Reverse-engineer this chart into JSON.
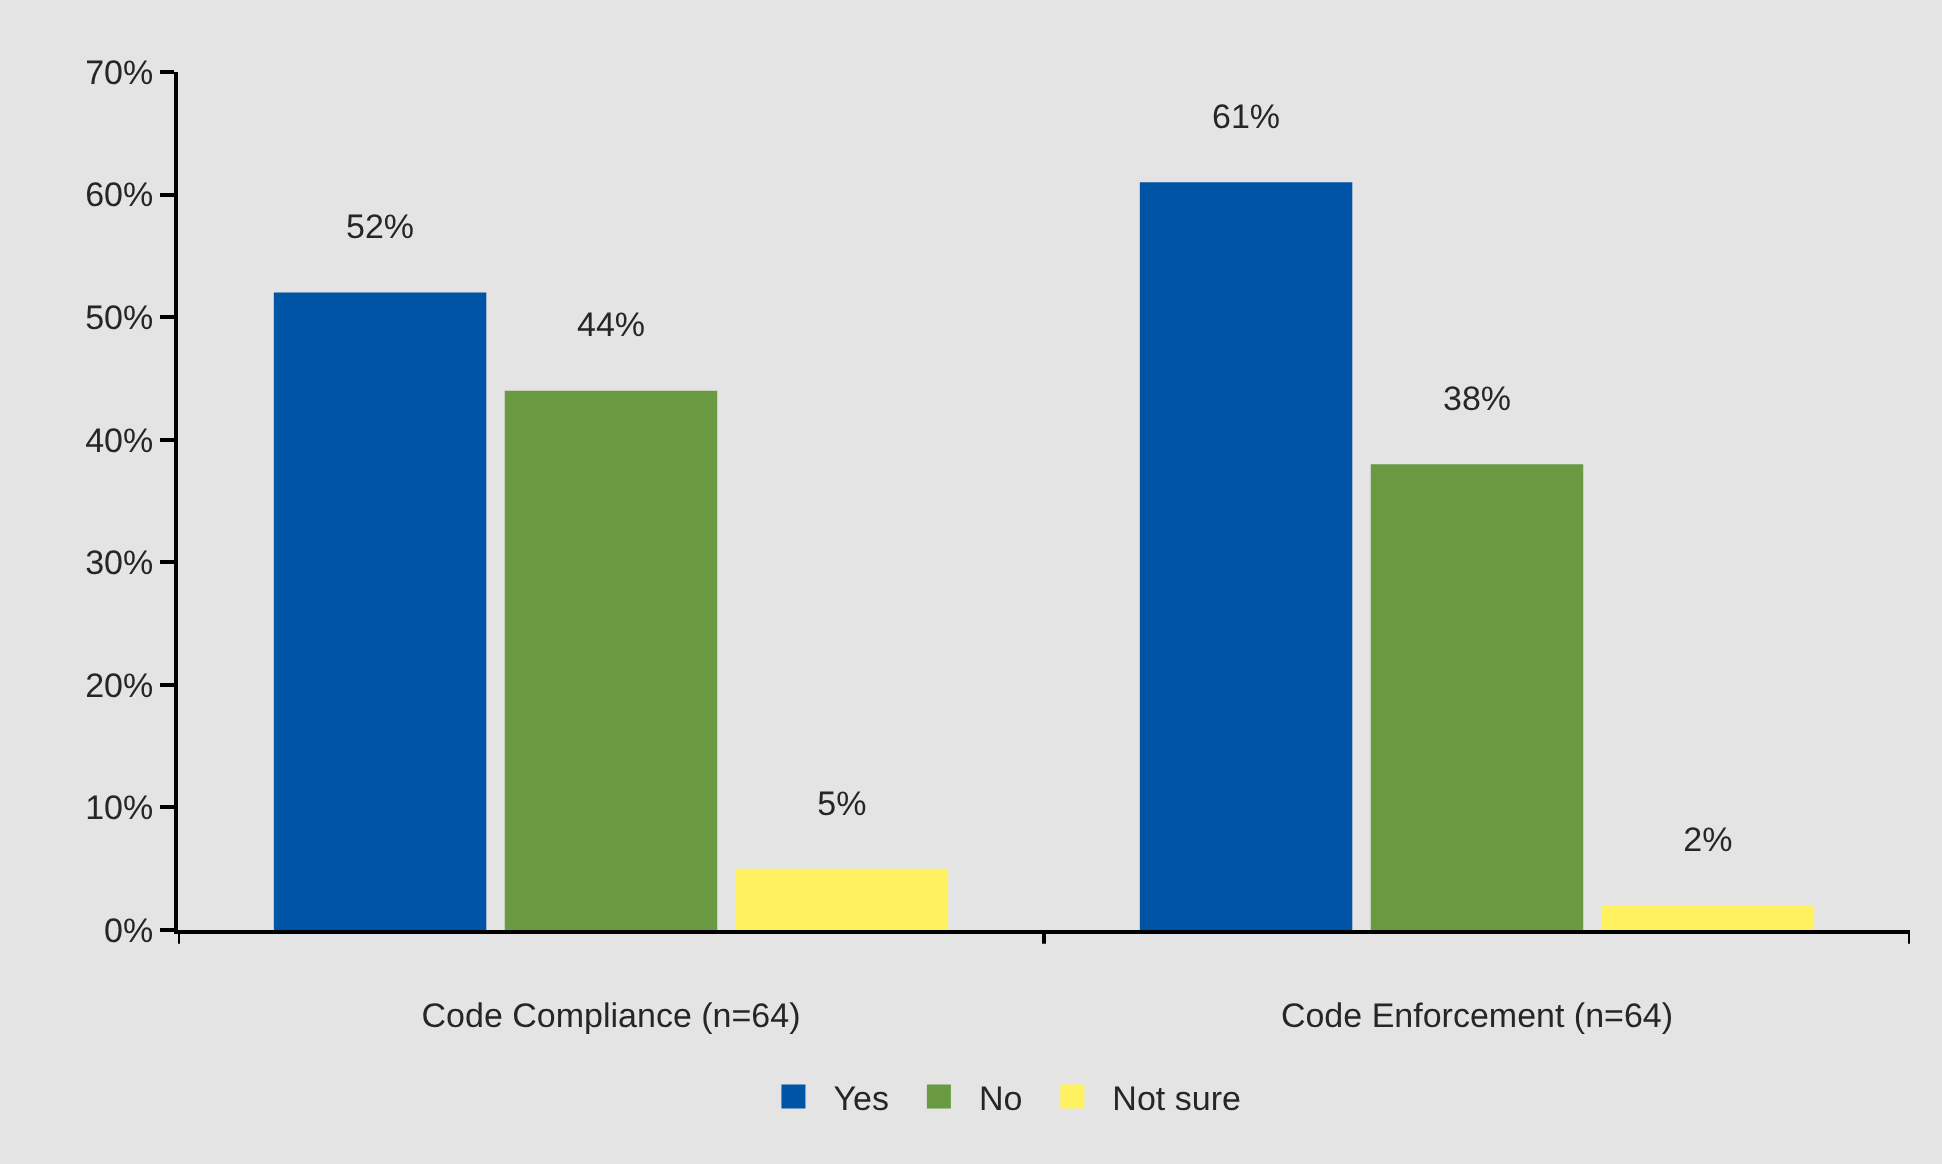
{
  "chart_data": {
    "type": "bar",
    "categories": [
      "Code Compliance (n=64)",
      "Code Enforcement (n=64)"
    ],
    "series": [
      {
        "name": "Yes",
        "color": "#0054a5",
        "values": [
          52,
          61
        ],
        "value_labels": [
          "52%",
          "61%"
        ]
      },
      {
        "name": "No",
        "color": "#699a41",
        "values": [
          44,
          38
        ],
        "value_labels": [
          "44%",
          "38%"
        ]
      },
      {
        "name": "Not sure",
        "color": "#fff05f",
        "values": [
          5,
          2
        ],
        "value_labels": [
          "5%",
          "2%"
        ]
      }
    ],
    "ylim": [
      0,
      70
    ],
    "yticks": [
      {
        "value": 0,
        "label": "0%"
      },
      {
        "value": 10,
        "label": "10%"
      },
      {
        "value": 20,
        "label": "20%"
      },
      {
        "value": 30,
        "label": "30%"
      },
      {
        "value": 40,
        "label": "40%"
      },
      {
        "value": 50,
        "label": "50%"
      },
      {
        "value": 60,
        "label": "60%"
      },
      {
        "value": 70,
        "label": "70%"
      }
    ],
    "legend": "bottom"
  }
}
